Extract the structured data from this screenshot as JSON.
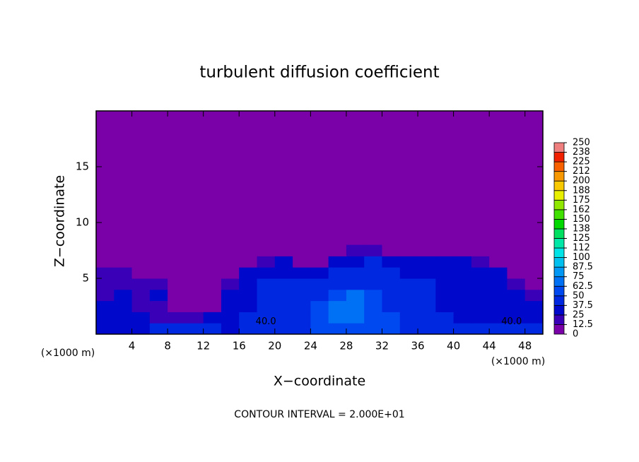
{
  "chart_data": {
    "type": "contour",
    "title": "turbulent diffusion coefficient",
    "xlabel": "X−coordinate",
    "ylabel": "Z−coordinate",
    "x_unit_label": "(×1000 m)",
    "footer": "CONTOUR INTERVAL = 2.000E+01",
    "xlim": [
      0,
      50
    ],
    "ylim": [
      0,
      20
    ],
    "xticks": [
      4,
      8,
      12,
      16,
      20,
      24,
      28,
      32,
      36,
      40,
      44,
      48
    ],
    "yticks": [
      5,
      10,
      15
    ],
    "x": [
      1,
      3,
      5,
      7,
      9,
      11,
      13,
      15,
      17,
      19,
      21,
      23,
      25,
      27,
      29,
      31,
      33,
      35,
      37,
      39,
      41,
      43,
      45,
      47,
      49
    ],
    "y": [
      0.5,
      1.5,
      2.5,
      3.5,
      4.5,
      5.5,
      6.5,
      7.5
    ],
    "z": [
      [
        35,
        35,
        30,
        40,
        38,
        40,
        40,
        35,
        40,
        42,
        45,
        48,
        50,
        55,
        60,
        55,
        50,
        45,
        45,
        40,
        40,
        38,
        40,
        40,
        38
      ],
      [
        30,
        35,
        25,
        20,
        20,
        15,
        30,
        35,
        40,
        42,
        45,
        48,
        55,
        65,
        70,
        62,
        50,
        45,
        40,
        38,
        35,
        30,
        30,
        35,
        30
      ],
      [
        25,
        30,
        20,
        15,
        10,
        5,
        10,
        30,
        35,
        40,
        42,
        45,
        50,
        65,
        70,
        60,
        48,
        42,
        40,
        35,
        35,
        30,
        28,
        30,
        25
      ],
      [
        20,
        25,
        20,
        25,
        10,
        5,
        5,
        25,
        35,
        38,
        40,
        42,
        45,
        55,
        65,
        55,
        45,
        40,
        38,
        35,
        35,
        30,
        30,
        25,
        20
      ],
      [
        15,
        20,
        20,
        15,
        10,
        5,
        5,
        15,
        35,
        38,
        38,
        40,
        40,
        42,
        48,
        45,
        42,
        38,
        38,
        35,
        35,
        32,
        30,
        20,
        10
      ],
      [
        15,
        15,
        10,
        8,
        5,
        3,
        2,
        5,
        25,
        35,
        35,
        35,
        35,
        38,
        40,
        40,
        38,
        35,
        35,
        35,
        35,
        30,
        25,
        10,
        5
      ],
      [
        5,
        8,
        5,
        3,
        2,
        0,
        0,
        0,
        5,
        20,
        30,
        5,
        3,
        30,
        35,
        38,
        35,
        30,
        30,
        28,
        25,
        15,
        5,
        2,
        0
      ],
      [
        0,
        0,
        0,
        0,
        0,
        0,
        0,
        0,
        0,
        0,
        0,
        0,
        0,
        10,
        15,
        20,
        10,
        0,
        0,
        0,
        0,
        0,
        0,
        0,
        0
      ]
    ],
    "contour_labels": [
      "40.0",
      "40.0"
    ],
    "colorbar_ticks": [
      0,
      12.5,
      25,
      37.5,
      50,
      62.5,
      75,
      87.5,
      100,
      {
        "value": 112.5,
        "label": "112"
      },
      125,
      {
        "value": 137.5,
        "label": "138"
      },
      150,
      {
        "value": 162.5,
        "label": "162"
      },
      175,
      {
        "value": 187.5,
        "label": "188"
      },
      200,
      {
        "value": 212.5,
        "label": "212"
      },
      225,
      {
        "value": 237.5,
        "label": "238"
      },
      250
    ],
    "colors": [
      "#7a00a8",
      "#3a00b8",
      "#0008cc",
      "#0028e0",
      "#0048f0",
      "#0070f4",
      "#0098f4",
      "#00c0f0",
      "#00e4e8",
      "#00e8a8",
      "#00e060",
      "#00d800",
      "#40e000",
      "#90e800",
      "#e8f000",
      "#f8c800",
      "#f89800",
      "#f86000",
      "#f02000",
      "#f08080"
    ]
  }
}
